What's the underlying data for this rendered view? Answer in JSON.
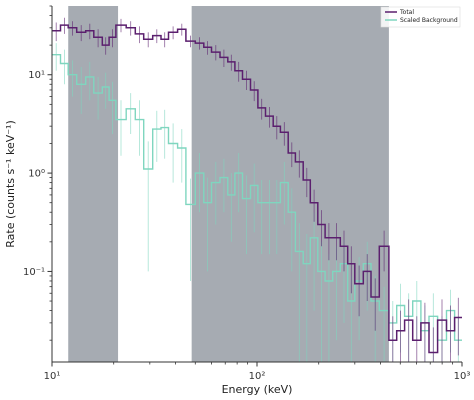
{
  "chart_data": {
    "type": "line",
    "xscale": "log",
    "yscale": "log",
    "xlabel": "Energy (keV)",
    "ylabel": "Rate (counts s⁻¹ keV⁻¹)",
    "xlim": [
      10,
      1000
    ],
    "ylim": [
      0.012,
      50
    ],
    "x_ticks": [
      {
        "value": 10,
        "label": "10¹"
      },
      {
        "value": 100,
        "label": "10²"
      },
      {
        "value": 1000,
        "label": "10³"
      }
    ],
    "y_ticks": [
      {
        "value": 0.1,
        "label": "10⁻¹"
      },
      {
        "value": 1,
        "label": "10⁰"
      },
      {
        "value": 10,
        "label": "10¹"
      }
    ],
    "shaded_regions": [
      {
        "from": 12.0,
        "to": 21.0
      },
      {
        "from": 48.0,
        "to": 440.0
      }
    ],
    "legend": {
      "position": "top-right"
    },
    "series": [
      {
        "name": "Total",
        "color": "#5b1f6e",
        "points": [
          [
            10.0,
            11.0,
            28.0,
            6.0
          ],
          [
            11.0,
            12.0,
            32.0,
            6.0
          ],
          [
            12.0,
            13.2,
            30.0,
            5.0
          ],
          [
            13.2,
            14.6,
            27.0,
            5.0
          ],
          [
            14.6,
            16.0,
            28.0,
            5.0
          ],
          [
            16.0,
            17.6,
            24.0,
            5.0
          ],
          [
            17.6,
            19.0,
            20.0,
            4.0
          ],
          [
            19.0,
            20.5,
            24.0,
            5.0
          ],
          [
            20.5,
            23.0,
            32.0,
            5.0
          ],
          [
            23.0,
            25.5,
            30.0,
            5.0
          ],
          [
            25.5,
            28.0,
            26.0,
            5.0
          ],
          [
            28.0,
            31.0,
            23.0,
            4.0
          ],
          [
            31.0,
            34.0,
            25.0,
            4.0
          ],
          [
            34.0,
            37.0,
            23.0,
            4.0
          ],
          [
            37.0,
            41.0,
            27.0,
            4.0
          ],
          [
            41.0,
            45.0,
            29.0,
            4.0
          ],
          [
            45.0,
            50.0,
            22.0,
            3.0
          ],
          [
            50.0,
            55.0,
            21.0,
            3.0
          ],
          [
            55.0,
            60.0,
            19.0,
            3.0
          ],
          [
            60.0,
            66.0,
            17.0,
            3.0
          ],
          [
            66.0,
            72.0,
            15.0,
            3.0
          ],
          [
            72.0,
            78.0,
            13.5,
            2.5
          ],
          [
            78.0,
            85.0,
            11.0,
            2.5
          ],
          [
            85.0,
            93.0,
            9.0,
            2.0
          ],
          [
            93.0,
            101.0,
            7.0,
            1.6
          ],
          [
            101.0,
            110.0,
            4.6,
            1.1
          ],
          [
            110.0,
            120.0,
            3.8,
            0.9
          ],
          [
            120.0,
            130.0,
            3.0,
            0.8
          ],
          [
            130.0,
            142.0,
            2.6,
            0.7
          ],
          [
            142.0,
            154.0,
            1.6,
            0.45
          ],
          [
            154.0,
            168.0,
            1.3,
            0.4
          ],
          [
            168.0,
            182.0,
            0.85,
            0.28
          ],
          [
            182.0,
            198.0,
            0.5,
            0.18
          ],
          [
            198.0,
            215.0,
            0.3,
            0.12
          ],
          [
            215.0,
            234.0,
            0.22,
            0.09
          ],
          [
            234.0,
            255.0,
            0.22,
            0.09
          ],
          [
            255.0,
            277.0,
            0.18,
            0.08
          ],
          [
            277.0,
            300.0,
            0.12,
            0.06
          ],
          [
            300.0,
            330.0,
            0.075,
            0.04
          ],
          [
            330.0,
            360.0,
            0.1,
            0.05
          ],
          [
            360.0,
            395.0,
            0.055,
            0.03
          ],
          [
            395.0,
            440.0,
            0.18,
            0.08
          ],
          [
            440.0,
            480.0,
            0.02,
            0.015
          ],
          [
            480.0,
            525.0,
            0.025,
            0.015
          ],
          [
            525.0,
            575.0,
            0.032,
            0.02
          ],
          [
            575.0,
            630.0,
            0.02,
            0.015
          ],
          [
            630.0,
            690.0,
            0.03,
            0.018
          ],
          [
            690.0,
            760.0,
            0.015,
            0.012
          ],
          [
            760.0,
            840.0,
            0.032,
            0.02
          ],
          [
            840.0,
            920.0,
            0.025,
            0.02
          ],
          [
            920.0,
            1000.0,
            0.034,
            0.02
          ]
        ]
      },
      {
        "name": "Scaled  Background",
        "color": "#7fd6bf",
        "points": [
          [
            10.0,
            11.0,
            16.0,
            5.0
          ],
          [
            11.0,
            12.0,
            13.0,
            5.0
          ],
          [
            12.0,
            13.2,
            10.0,
            4.0
          ],
          [
            13.2,
            14.6,
            8.0,
            4.0
          ],
          [
            14.6,
            16.0,
            9.5,
            4.0
          ],
          [
            16.0,
            17.6,
            6.5,
            3.0
          ],
          [
            17.6,
            19.0,
            7.5,
            3.0
          ],
          [
            19.0,
            20.5,
            5.5,
            3.0
          ],
          [
            20.5,
            23.0,
            3.5,
            2.0
          ],
          [
            23.0,
            25.5,
            4.5,
            2.0
          ],
          [
            25.5,
            28.0,
            3.5,
            2.0
          ],
          [
            28.0,
            31.0,
            1.1,
            1.0
          ],
          [
            31.0,
            34.0,
            2.8,
            1.5
          ],
          [
            34.0,
            37.0,
            2.9,
            1.5
          ],
          [
            37.0,
            41.0,
            2.0,
            1.2
          ],
          [
            41.0,
            45.0,
            1.8,
            1.0
          ],
          [
            45.0,
            50.0,
            0.48,
            0.4
          ],
          [
            50.0,
            55.0,
            1.0,
            0.6
          ],
          [
            55.0,
            60.0,
            0.5,
            0.4
          ],
          [
            60.0,
            66.0,
            0.8,
            0.5
          ],
          [
            66.0,
            72.0,
            0.9,
            0.5
          ],
          [
            72.0,
            78.0,
            0.6,
            0.4
          ],
          [
            78.0,
            85.0,
            1.0,
            0.6
          ],
          [
            85.0,
            93.0,
            0.55,
            0.4
          ],
          [
            93.0,
            101.0,
            0.75,
            0.5
          ],
          [
            101.0,
            110.0,
            0.5,
            0.35
          ],
          [
            110.0,
            120.0,
            0.5,
            0.35
          ],
          [
            120.0,
            130.0,
            0.5,
            0.35
          ],
          [
            130.0,
            142.0,
            0.8,
            0.5
          ],
          [
            142.0,
            154.0,
            0.4,
            0.3
          ],
          [
            154.0,
            168.0,
            0.16,
            0.15
          ],
          [
            168.0,
            182.0,
            0.12,
            0.12
          ],
          [
            182.0,
            198.0,
            0.22,
            0.18
          ],
          [
            198.0,
            215.0,
            0.1,
            0.1
          ],
          [
            215.0,
            234.0,
            0.08,
            0.07
          ],
          [
            234.0,
            255.0,
            0.1,
            0.08
          ],
          [
            255.0,
            277.0,
            0.12,
            0.09
          ],
          [
            277.0,
            300.0,
            0.05,
            0.04
          ],
          [
            300.0,
            330.0,
            0.08,
            0.06
          ],
          [
            330.0,
            360.0,
            0.12,
            0.08
          ],
          [
            360.0,
            395.0,
            0.05,
            0.04
          ],
          [
            395.0,
            440.0,
            0.04,
            0.03
          ],
          [
            440.0,
            480.0,
            0.03,
            0.02
          ],
          [
            480.0,
            525.0,
            0.045,
            0.03
          ],
          [
            525.0,
            575.0,
            0.035,
            0.025
          ],
          [
            575.0,
            630.0,
            0.05,
            0.03
          ],
          [
            630.0,
            690.0,
            0.025,
            0.02
          ],
          [
            690.0,
            760.0,
            0.035,
            0.025
          ],
          [
            760.0,
            840.0,
            0.02,
            0.015
          ],
          [
            840.0,
            920.0,
            0.04,
            0.025
          ],
          [
            920.0,
            1000.0,
            0.02,
            0.015
          ]
        ]
      }
    ]
  }
}
